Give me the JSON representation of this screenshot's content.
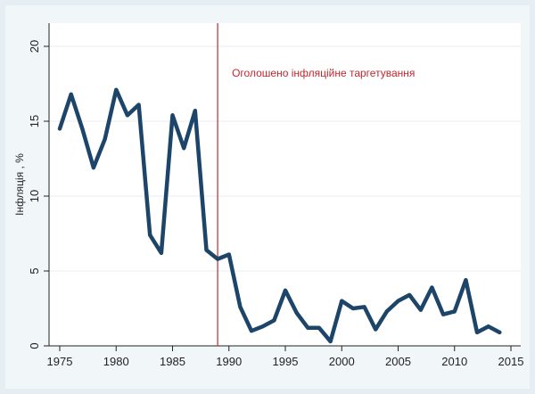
{
  "chart_data": {
    "type": "line",
    "title": "",
    "xlabel": "",
    "ylabel": "Інфляція , %",
    "xlim": [
      1975,
      2015
    ],
    "ylim": [
      0,
      20
    ],
    "x_ticks": [
      1975,
      1980,
      1985,
      1990,
      1995,
      2000,
      2005,
      2010,
      2015
    ],
    "y_ticks": [
      0,
      5,
      10,
      15,
      20
    ],
    "grid": "horizontal",
    "series": [
      {
        "color": "#1c4569",
        "x": [
          1975,
          1976,
          1977,
          1978,
          1979,
          1980,
          1981,
          1982,
          1983,
          1984,
          1985,
          1986,
          1987,
          1988,
          1989,
          1990,
          1991,
          1992,
          1993,
          1994,
          1995,
          1996,
          1997,
          1998,
          1999,
          2000,
          2001,
          2002,
          2003,
          2004,
          2005,
          2006,
          2007,
          2008,
          2009,
          2010,
          2011,
          2012,
          2013,
          2014
        ],
        "values": [
          14.5,
          16.8,
          14.5,
          11.9,
          13.8,
          17.1,
          15.4,
          16.1,
          7.4,
          6.2,
          15.4,
          13.2,
          15.7,
          6.4,
          5.8,
          6.1,
          2.6,
          1.0,
          1.3,
          1.7,
          3.7,
          2.2,
          1.2,
          1.2,
          0.3,
          3.0,
          2.5,
          2.6,
          1.1,
          2.3,
          3.0,
          3.4,
          2.4,
          3.9,
          2.1,
          2.3,
          4.4,
          0.9,
          1.3,
          0.9
        ]
      }
    ],
    "reference_line": {
      "x": 1989,
      "color": "#c0282c",
      "label": "Оголошено інфляційне таргетування"
    }
  }
}
